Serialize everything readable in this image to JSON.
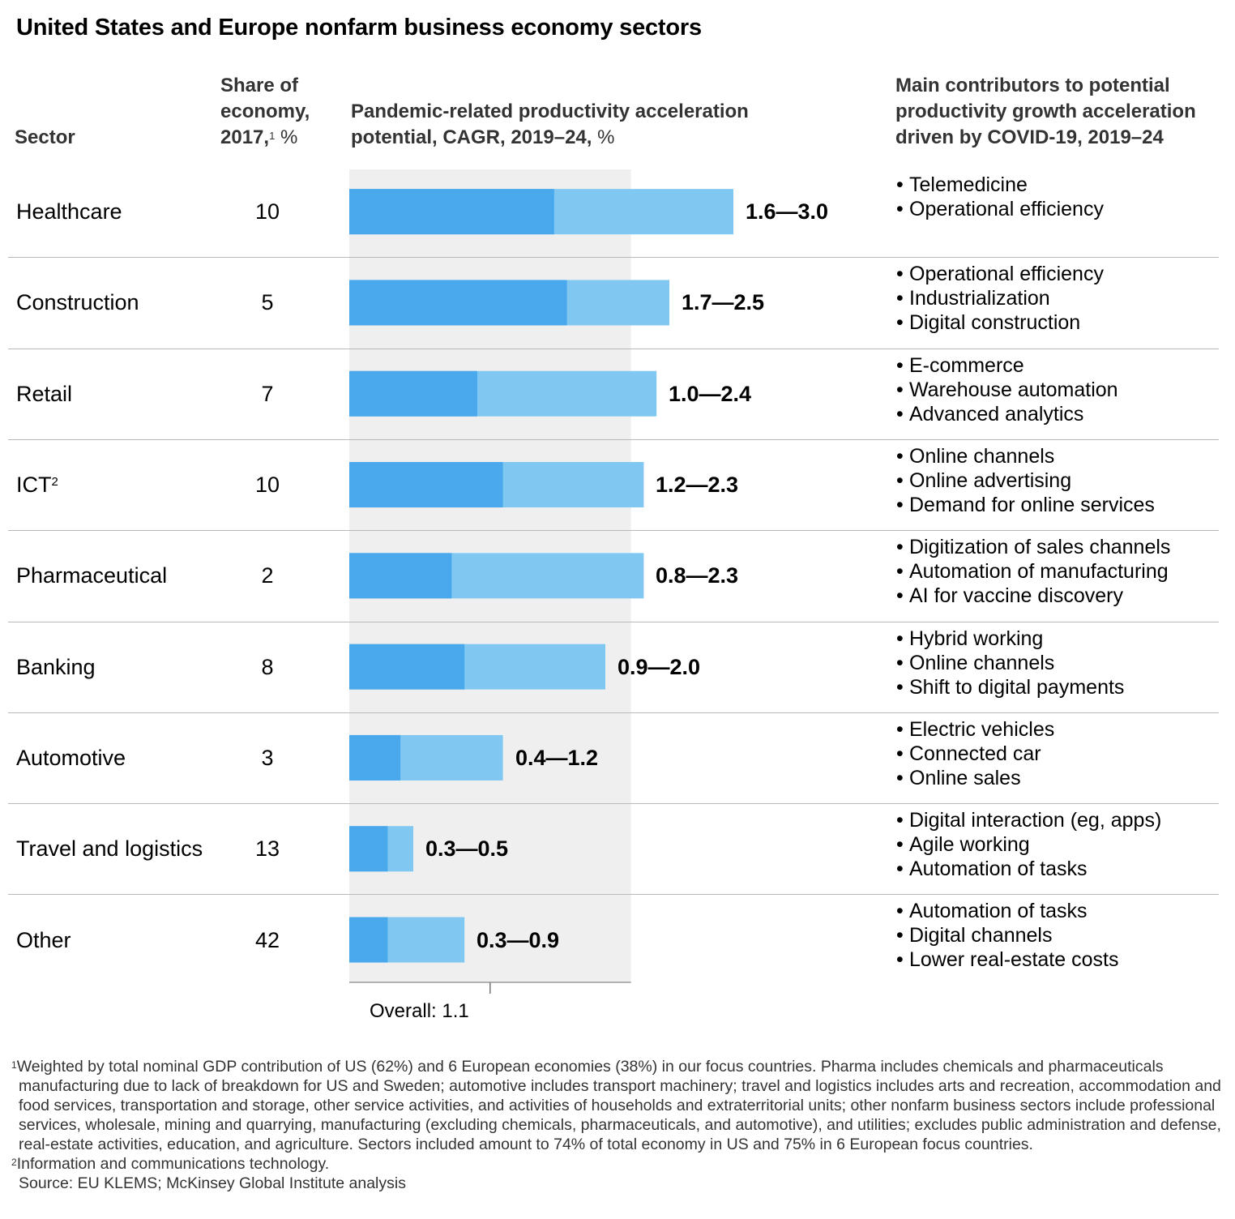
{
  "title": "United States and Europe nonfarm business economy sectors",
  "headers": {
    "sector": "Sector",
    "share_line1": "Share of",
    "share_line2": "economy,",
    "share_line3": "2017,",
    "share_sup": "1",
    "share_unit": "%",
    "chart_line1": "Pandemic-related productivity acceleration",
    "chart_line2": "potential, CAGR, 2019–24,",
    "chart_unit": "%",
    "contrib_line1": "Main contributors to potential",
    "contrib_line2": "productivity growth acceleration",
    "contrib_line3": "driven by COVID-19, 2019–24"
  },
  "rows": [
    {
      "sector": "Healthcare",
      "sup": "",
      "share": "10",
      "range": "1.6—3.0",
      "contributors": [
        "Telemedicine",
        "Operational efficiency"
      ]
    },
    {
      "sector": "Construction",
      "sup": "",
      "share": "5",
      "range": "1.7—2.5",
      "contributors": [
        "Operational efficiency",
        "Industrialization",
        "Digital construction"
      ]
    },
    {
      "sector": "Retail",
      "sup": "",
      "share": "7",
      "range": "1.0—2.4",
      "contributors": [
        "E-commerce",
        "Warehouse automation",
        "Advanced analytics"
      ]
    },
    {
      "sector": "ICT",
      "sup": "2",
      "share": "10",
      "range": "1.2—2.3",
      "contributors": [
        "Online channels",
        "Online advertising",
        "Demand for online services"
      ]
    },
    {
      "sector": "Pharmaceutical",
      "sup": "",
      "share": "2",
      "range": "0.8—2.3",
      "contributors": [
        "Digitization of sales channels",
        "Automation of manufacturing",
        "AI for vaccine discovery"
      ]
    },
    {
      "sector": "Banking",
      "sup": "",
      "share": "8",
      "range": "0.9—2.0",
      "contributors": [
        "Hybrid working",
        "Online channels",
        "Shift to digital payments"
      ]
    },
    {
      "sector": "Automotive",
      "sup": "",
      "share": "3",
      "range": "0.4—1.2",
      "contributors": [
        "Electric vehicles",
        "Connected car",
        "Online sales"
      ]
    },
    {
      "sector": "Travel and logistics",
      "sup": "",
      "share": "13",
      "range": "0.3—0.5",
      "contributors": [
        "Digital interaction (eg, apps)",
        "Agile working",
        "Automation of tasks"
      ]
    },
    {
      "sector": "Other",
      "sup": "",
      "share": "42",
      "range": "0.3—0.9",
      "contributors": [
        "Automation of tasks",
        "Digital channels",
        "Lower real-estate costs"
      ]
    }
  ],
  "overall_label": "Overall: 1.1",
  "colors": {
    "low": "#4aa8ec",
    "high": "#80c8f2",
    "overall_band": "#efefef"
  },
  "chart_data": {
    "type": "bar",
    "orientation": "horizontal",
    "stacked_range": true,
    "categories": [
      "Healthcare",
      "Construction",
      "Retail",
      "ICT",
      "Pharmaceutical",
      "Banking",
      "Automotive",
      "Travel and logistics",
      "Other"
    ],
    "series": [
      {
        "values": [
          1.6,
          1.7,
          1.0,
          1.2,
          0.8,
          0.9,
          0.4,
          0.3,
          0.3
        ]
      },
      {
        "values": [
          3.0,
          2.5,
          2.4,
          2.3,
          2.3,
          2.0,
          1.2,
          0.5,
          0.9
        ]
      }
    ],
    "reference": {
      "label": "Overall: 1.1",
      "value": 1.1
    },
    "xlim": [
      0,
      3.0
    ],
    "grid": false
  },
  "footnotes": [
    {
      "sup": "1",
      "text": "Weighted by total nominal GDP contribution of US (62%) and 6 European economies (38%) in our focus countries. Pharma includes chemicals and pharmaceuticals manufacturing due to lack of breakdown for US and Sweden; automotive includes transport machinery; travel and logistics includes arts and recreation, accommodation and food services, transportation and storage, other service activities, and activities of households and extraterritorial units; other nonfarm business sectors include professional services, wholesale, mining and quarrying, manufacturing (excluding chemicals, pharmaceuticals, and automotive), and utilities; excludes public administration and defense, real-estate activities, education, and agriculture. Sectors included amount to 74% of total economy in US and 75% in 6 European focus countries."
    },
    {
      "sup": "2",
      "text": "Information and communications technology."
    },
    {
      "sup": "",
      "text": "Source: EU KLEMS; McKinsey Global Institute analysis"
    }
  ]
}
